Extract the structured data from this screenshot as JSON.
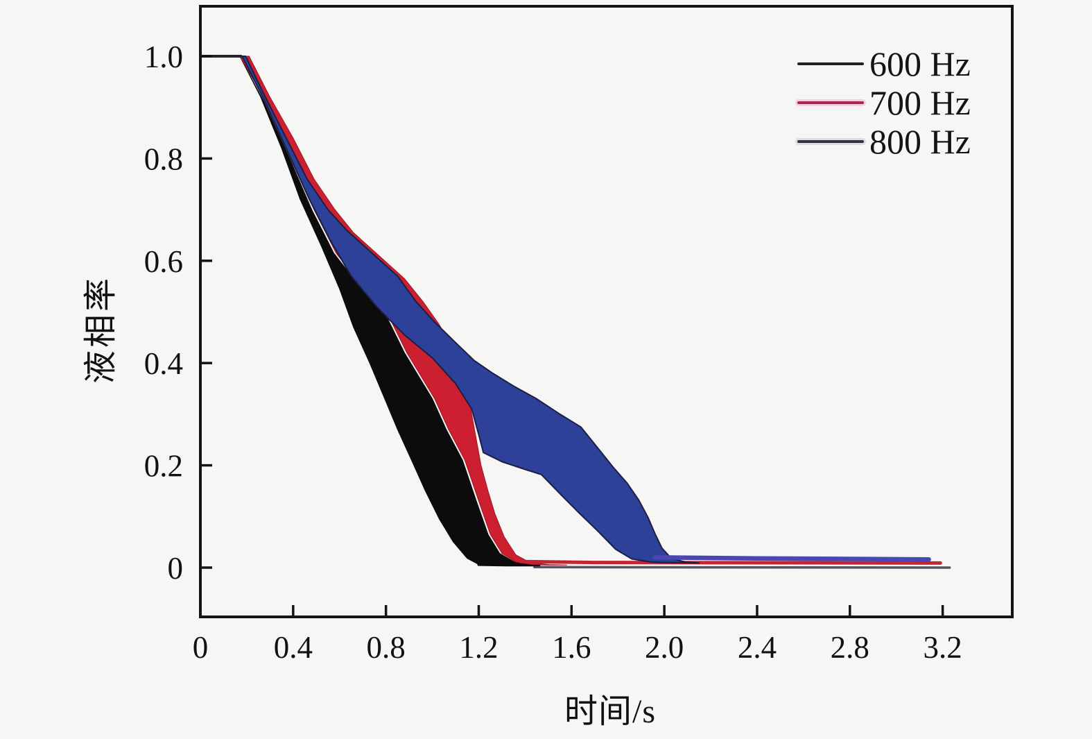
{
  "figure": {
    "background": "#f6f6f4",
    "axis_color": "#141414",
    "text_color": "#111111"
  },
  "legend": {
    "entries": [
      {
        "label": "600 Hz",
        "line_color": "#222226",
        "halo_color": "rgba(0,0,0,0)"
      },
      {
        "label": "700 Hz",
        "line_color": "#a8294d",
        "halo_color": "#f6cfe2"
      },
      {
        "label": "800 Hz",
        "line_color": "#32323c",
        "halo_color": "#dcdce2"
      }
    ]
  },
  "chart_data": {
    "type": "area",
    "title": "",
    "xlabel": "时间/s",
    "ylabel": "液相率",
    "xlim": [
      0,
      3.5
    ],
    "ylim": [
      -0.1,
      1.1
    ],
    "grid": false,
    "legend_position": "upper right",
    "x_ticks": {
      "values": [
        0,
        0.4,
        0.8,
        1.2,
        1.6,
        2.0,
        2.4,
        2.8,
        3.2
      ],
      "labels": [
        "0",
        "0.4",
        "0.8",
        "1.2",
        "1.6",
        "2.0",
        "2.4",
        "2.8",
        "3.2"
      ]
    },
    "y_ticks": {
      "values": [
        0,
        0.2,
        0.4,
        0.6,
        0.8,
        1.0
      ],
      "labels": [
        "0",
        "0.2",
        "0.4",
        "0.6",
        "0.8",
        "1.0"
      ]
    },
    "flat_start_segment": {
      "points": [
        [
          0.005,
          1.0
        ],
        [
          0.175,
          1.0
        ]
      ],
      "color": "#26262a",
      "width": 4
    },
    "zero_baseline_tail": {
      "points": [
        [
          1.44,
          0.001
        ],
        [
          3.23,
          0.0
        ]
      ],
      "color": "#55555e",
      "width": 3.5
    },
    "series": [
      {
        "name": "600 Hz",
        "fill": "#0c0c0c",
        "edge": "#0c0c0c",
        "edge_width": 1,
        "band_lower": [
          [
            0.005,
            1.0
          ],
          [
            0.17,
            1.0
          ],
          [
            0.26,
            0.92
          ],
          [
            0.35,
            0.82
          ],
          [
            0.43,
            0.72
          ],
          [
            0.52,
            0.63
          ],
          [
            0.6,
            0.545
          ],
          [
            0.66,
            0.47
          ],
          [
            0.73,
            0.4
          ],
          [
            0.79,
            0.335
          ],
          [
            0.85,
            0.27
          ],
          [
            0.91,
            0.21
          ],
          [
            0.97,
            0.15
          ],
          [
            1.03,
            0.095
          ],
          [
            1.09,
            0.05
          ],
          [
            1.15,
            0.018
          ],
          [
            1.2,
            0.006
          ]
        ],
        "band_upper": [
          [
            0.005,
            1.0
          ],
          [
            0.17,
            1.0
          ],
          [
            0.275,
            0.91
          ],
          [
            0.385,
            0.8
          ],
          [
            0.48,
            0.7
          ],
          [
            0.575,
            0.615
          ],
          [
            0.66,
            0.565
          ],
          [
            0.76,
            0.53
          ],
          [
            0.88,
            0.42
          ],
          [
            1.0,
            0.33
          ],
          [
            1.06,
            0.27
          ],
          [
            1.13,
            0.21
          ],
          [
            1.19,
            0.13
          ],
          [
            1.24,
            0.065
          ],
          [
            1.29,
            0.028
          ],
          [
            1.35,
            0.012
          ],
          [
            1.42,
            0.006
          ],
          [
            1.45,
            0.005
          ]
        ],
        "tail": {
          "points": [
            [
              1.2,
              0.006
            ],
            [
              1.32,
              0.005
            ],
            [
              1.46,
              0.005
            ]
          ],
          "color": "#0c0c0c",
          "width": 4
        }
      },
      {
        "name": "700 Hz",
        "fill": "#cc2030",
        "edge": "#a01525",
        "edge_width": 1,
        "band_lower": [
          [
            0.005,
            1.0
          ],
          [
            0.17,
            1.0
          ],
          [
            0.285,
            0.91
          ],
          [
            0.395,
            0.8
          ],
          [
            0.49,
            0.7
          ],
          [
            0.585,
            0.615
          ],
          [
            0.67,
            0.565
          ],
          [
            0.77,
            0.53
          ],
          [
            0.89,
            0.42
          ],
          [
            1.01,
            0.33
          ],
          [
            1.07,
            0.27
          ],
          [
            1.14,
            0.21
          ],
          [
            1.2,
            0.13
          ],
          [
            1.25,
            0.065
          ],
          [
            1.3,
            0.028
          ],
          [
            1.36,
            0.011
          ],
          [
            1.43,
            0.006
          ],
          [
            1.5,
            0.005
          ]
        ],
        "band_upper": [
          [
            0.005,
            1.0
          ],
          [
            0.21,
            1.0
          ],
          [
            0.3,
            0.92
          ],
          [
            0.4,
            0.84
          ],
          [
            0.49,
            0.76
          ],
          [
            0.58,
            0.7
          ],
          [
            0.66,
            0.655
          ],
          [
            0.77,
            0.61
          ],
          [
            0.88,
            0.565
          ],
          [
            0.96,
            0.52
          ],
          [
            1.03,
            0.475
          ],
          [
            1.08,
            0.435
          ],
          [
            1.12,
            0.395
          ],
          [
            1.15,
            0.35
          ],
          [
            1.17,
            0.3
          ],
          [
            1.19,
            0.25
          ],
          [
            1.21,
            0.2
          ],
          [
            1.24,
            0.15
          ],
          [
            1.27,
            0.105
          ],
          [
            1.31,
            0.06
          ],
          [
            1.36,
            0.025
          ],
          [
            1.42,
            0.01
          ],
          [
            1.5,
            0.006
          ],
          [
            1.58,
            0.005
          ]
        ],
        "tail": {
          "points": [
            [
              1.38,
              0.012
            ],
            [
              1.7,
              0.01
            ],
            [
              3.19,
              0.009
            ]
          ],
          "color": "#c42434",
          "width": 5
        }
      },
      {
        "name": "800 Hz",
        "fill": "#2c4197",
        "edge": "#1c1e44",
        "edge_width": 2,
        "band_lower": [
          [
            0.005,
            1.0
          ],
          [
            0.18,
            1.0
          ],
          [
            0.28,
            0.91
          ],
          [
            0.38,
            0.81
          ],
          [
            0.47,
            0.72
          ],
          [
            0.56,
            0.64
          ],
          [
            0.65,
            0.57
          ],
          [
            0.76,
            0.51
          ],
          [
            0.88,
            0.455
          ],
          [
            1.0,
            0.41
          ],
          [
            1.1,
            0.36
          ],
          [
            1.17,
            0.31
          ],
          [
            1.2,
            0.26
          ],
          [
            1.22,
            0.225
          ],
          [
            1.3,
            0.207
          ],
          [
            1.4,
            0.192
          ],
          [
            1.47,
            0.182
          ],
          [
            1.56,
            0.14
          ],
          [
            1.63,
            0.108
          ],
          [
            1.71,
            0.073
          ],
          [
            1.79,
            0.036
          ],
          [
            1.86,
            0.017
          ],
          [
            1.94,
            0.011
          ],
          [
            2.0,
            0.01
          ]
        ],
        "band_upper": [
          [
            0.005,
            1.0
          ],
          [
            0.195,
            1.0
          ],
          [
            0.28,
            0.92
          ],
          [
            0.37,
            0.84
          ],
          [
            0.46,
            0.76
          ],
          [
            0.55,
            0.7
          ],
          [
            0.63,
            0.66
          ],
          [
            0.74,
            0.615
          ],
          [
            0.85,
            0.57
          ],
          [
            0.93,
            0.52
          ],
          [
            1.01,
            0.48
          ],
          [
            1.1,
            0.44
          ],
          [
            1.18,
            0.405
          ],
          [
            1.26,
            0.38
          ],
          [
            1.35,
            0.355
          ],
          [
            1.45,
            0.33
          ],
          [
            1.55,
            0.3
          ],
          [
            1.64,
            0.275
          ],
          [
            1.72,
            0.23
          ],
          [
            1.78,
            0.196
          ],
          [
            1.84,
            0.165
          ],
          [
            1.89,
            0.132
          ],
          [
            1.93,
            0.098
          ],
          [
            1.96,
            0.066
          ],
          [
            1.99,
            0.038
          ],
          [
            2.03,
            0.018
          ],
          [
            2.09,
            0.011
          ],
          [
            2.15,
            0.009
          ]
        ],
        "tail": {
          "points": [
            [
              1.96,
              0.02
            ],
            [
              2.4,
              0.018
            ],
            [
              3.14,
              0.016
            ]
          ],
          "color": "#4a47b4",
          "width": 6.5
        }
      }
    ]
  }
}
